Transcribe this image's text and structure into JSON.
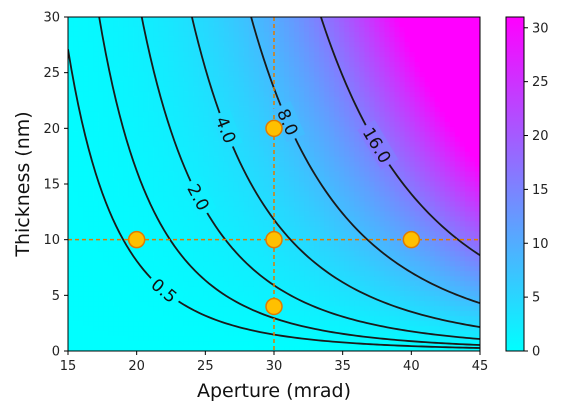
{
  "chart_data": {
    "type": "heatmap",
    "title": "",
    "xlabel": "Aperture (mrad)",
    "ylabel": "Thickness (nm)",
    "xlim": [
      15,
      45
    ],
    "ylim": [
      0,
      30
    ],
    "x_ticks": [
      "15",
      "20",
      "25",
      "30",
      "35",
      "40",
      "45"
    ],
    "y_ticks": [
      "0",
      "5",
      "10",
      "15",
      "20",
      "25",
      "30"
    ],
    "colorbar": {
      "range": [
        0,
        31
      ],
      "ticks": [
        "0",
        "5",
        "10",
        "15",
        "20",
        "25",
        "30"
      ],
      "colors": [
        "#00ffff",
        "#ff00ff"
      ]
    },
    "contour_levels": [
      {
        "value": 0.5,
        "label": "0.5"
      },
      {
        "value": 1.0,
        "label": ""
      },
      {
        "value": 2.0,
        "label": "2.0"
      },
      {
        "value": 4.0,
        "label": "4.0"
      },
      {
        "value": 8.0,
        "label": "8.0"
      },
      {
        "value": 16.0,
        "label": "16.0"
      }
    ],
    "points": [
      {
        "x": 20,
        "y": 10
      },
      {
        "x": 30,
        "y": 10
      },
      {
        "x": 40,
        "y": 10
      },
      {
        "x": 30,
        "y": 20
      },
      {
        "x": 30,
        "y": 4
      }
    ],
    "reference_lines": {
      "x": 30,
      "y": 10
    },
    "grid": false,
    "point_color": "#ffc000",
    "point_edge_color": "#e07b00",
    "line_color": "#e07b00",
    "contour_color": "#1a1a1a"
  }
}
